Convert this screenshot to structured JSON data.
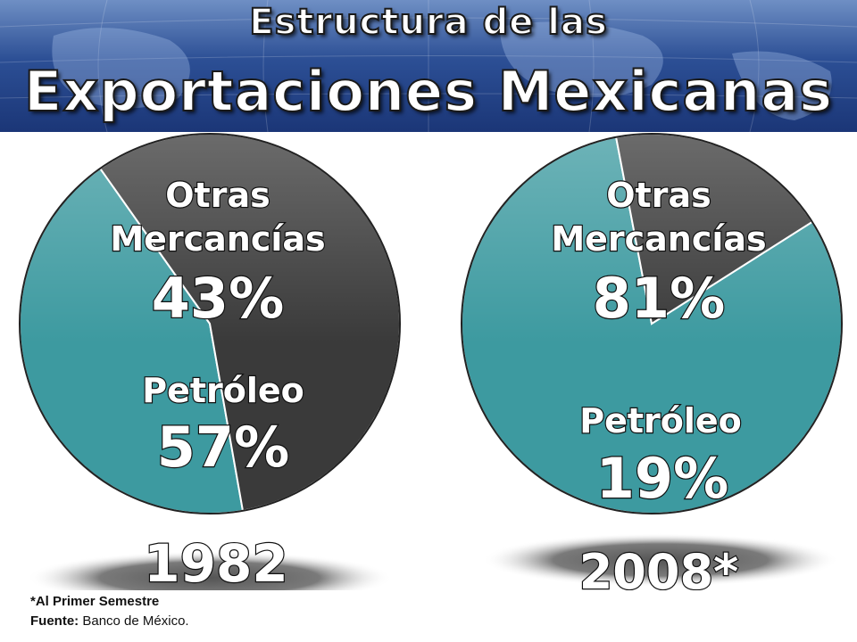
{
  "title": {
    "line1": "Estructura de las",
    "line2": "Exportaciones Mexicanas"
  },
  "colors": {
    "otras": "#3d9aa0",
    "petroleo": "#3a3a3a",
    "header": "#2c4f95"
  },
  "chart_data": [
    {
      "type": "pie",
      "year_label": "1982",
      "slices": [
        {
          "name_lines": [
            "Otras",
            "Mercancías"
          ],
          "value": 43,
          "value_label": "43%",
          "color": "#3d9aa0"
        },
        {
          "name_lines": [
            "Petróleo"
          ],
          "value": 57,
          "value_label": "57%",
          "color": "#3a3a3a"
        }
      ]
    },
    {
      "type": "pie",
      "year_label": "2008*",
      "slices": [
        {
          "name_lines": [
            "Otras",
            "Mercancías"
          ],
          "value": 81,
          "value_label": "81%",
          "color": "#3d9aa0"
        },
        {
          "name_lines": [
            "Petróleo"
          ],
          "value": 19,
          "value_label": "19%",
          "color": "#3a3a3a"
        }
      ]
    }
  ],
  "footnote": {
    "note": "*Al Primer Semestre",
    "source_label": "Fuente:",
    "source_value": "Banco de México."
  }
}
